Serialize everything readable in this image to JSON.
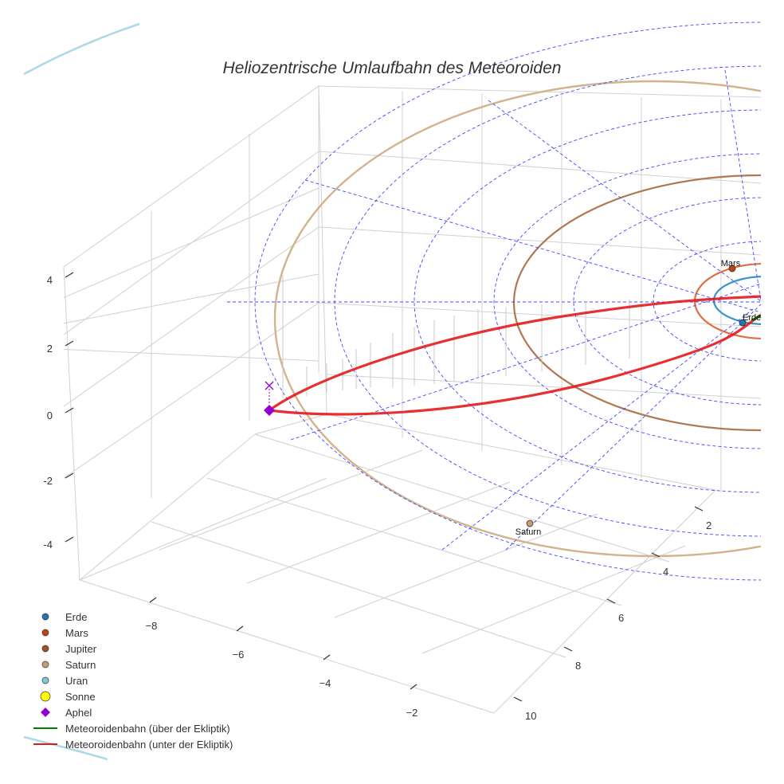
{
  "chart_data": {
    "type": "scatter3d",
    "title": "Heliozentrische Umlaufbahn des Meteoroiden",
    "axes": {
      "x": {
        "ticks": [
          -8,
          -6,
          -4,
          -2
        ]
      },
      "y": {
        "ticks": [
          2,
          4,
          6,
          8,
          10
        ]
      },
      "z": {
        "ticks": [
          4,
          2,
          0,
          -2,
          -4
        ]
      }
    },
    "planets": [
      {
        "name": "Erde",
        "color": "#1f77b4",
        "label": "Erde"
      },
      {
        "name": "Mars",
        "color": "#c1440e",
        "label": "Mars"
      },
      {
        "name": "Jupiter",
        "color": "#a0522d",
        "label": ""
      },
      {
        "name": "Saturn",
        "color": "#c89b70",
        "label": "Saturn"
      },
      {
        "name": "Uran",
        "color": "#7fc7d9",
        "label": ""
      }
    ],
    "sun": {
      "name": "Sonne",
      "color": "#ffff00"
    },
    "aphel": {
      "name": "Aphel",
      "color": "#9400d3"
    },
    "orbit_colors": {
      "Erde": "#3a94c8",
      "Mars": "#e07040",
      "Jupiter": "#b07850",
      "Saturn": "#d2b48c",
      "Uran": "#add8e6"
    },
    "meteoroid_orbit": {
      "above": {
        "name": "Meteoroidenbahn (über der Ekliptik)",
        "color": "#008000"
      },
      "below": {
        "name": "Meteoroidenbahn (unter der Ekliptik)",
        "color": "#e31a1c"
      }
    },
    "grid": true,
    "legend_position": "bottom-left"
  }
}
